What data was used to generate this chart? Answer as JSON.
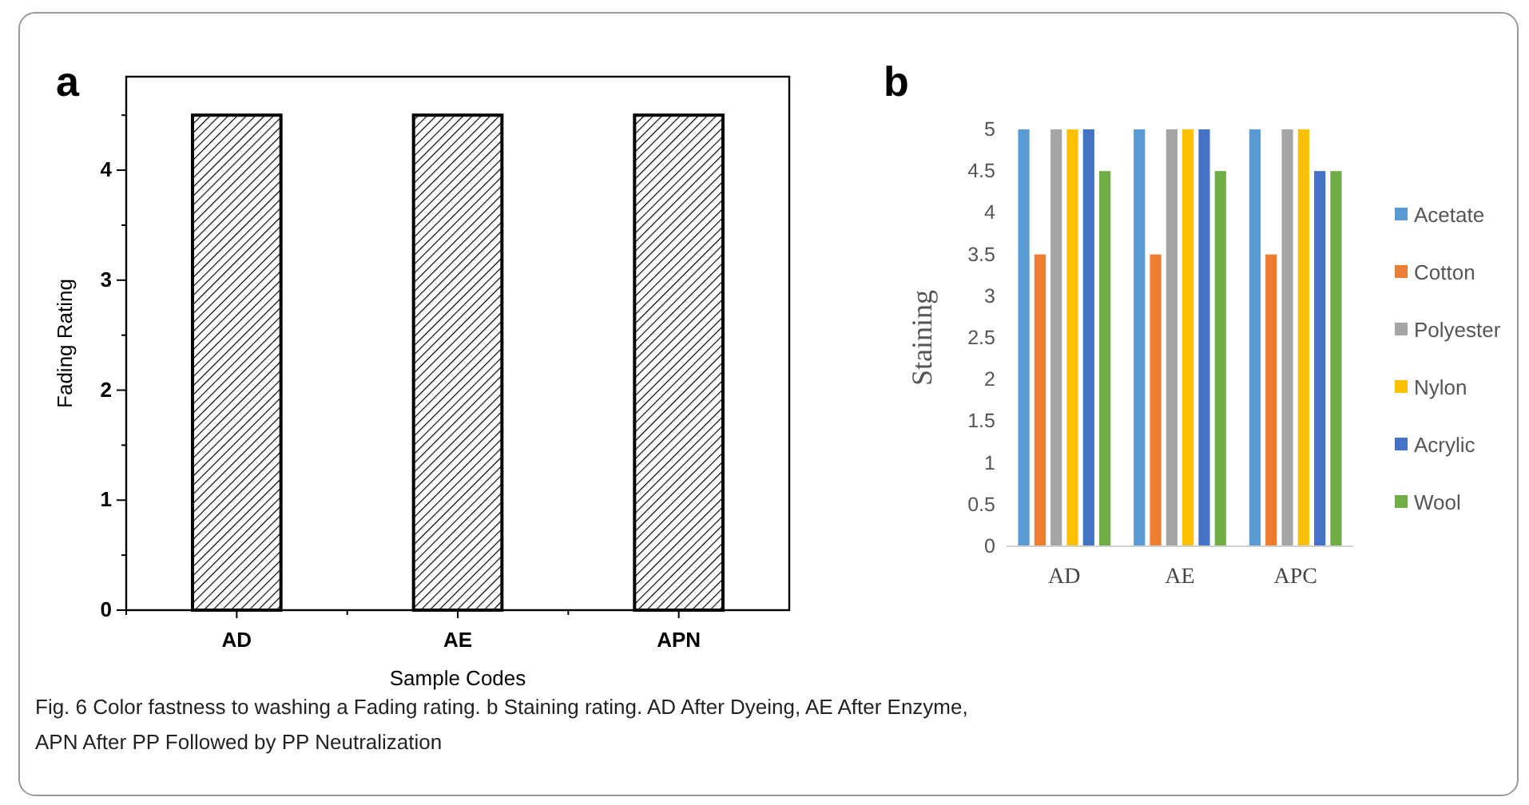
{
  "chart_data": [
    {
      "type": "bar",
      "title": "a",
      "xlabel": "Sample Codes",
      "ylabel": "Fading Rating",
      "categories": [
        "AD",
        "AE",
        "APN"
      ],
      "values": [
        4.5,
        4.5,
        4.5
      ],
      "color": "#000000",
      "ylim": [
        0,
        4.85
      ],
      "yticks": [
        0,
        {
          "value": 0.5,
          "label": null
        },
        1,
        {
          "value": 1.5,
          "label": null
        },
        2,
        {
          "value": 2.5,
          "label": null
        },
        3,
        {
          "value": 3.5,
          "label": null
        },
        4,
        {
          "value": 4.5,
          "label": null
        }
      ],
      "grid": false,
      "annotations": [
        "Fig. 6 Color fastness to washing a Fading rating. b Staining rating. AD After Dyeing, AE After Enzyme, APN After PP Followed by PP Neutralization"
      ]
    },
    {
      "type": "bar",
      "title": "b",
      "ylabel": "Staining",
      "categories": [
        "AD",
        "AE",
        "APC"
      ],
      "ylim": [
        0,
        5
      ],
      "yticks": [
        0,
        0.5,
        1,
        1.5,
        2,
        2.5,
        3,
        3.5,
        4,
        4.5,
        5
      ],
      "grid": false,
      "legend": "right",
      "series": [
        {
          "name": "Acetate",
          "color": "#5b9bd5",
          "values": [
            5,
            5,
            5
          ]
        },
        {
          "name": "Cotton",
          "color": "#ed7d31",
          "values": [
            3.5,
            3.5,
            3.5
          ]
        },
        {
          "name": "Polyester",
          "color": "#a5a5a5",
          "values": [
            5,
            5,
            5
          ]
        },
        {
          "name": "Nylon",
          "color": "#ffc000",
          "values": [
            5,
            5,
            5
          ]
        },
        {
          "name": "Acrylic",
          "color": "#4472c4",
          "values": [
            5,
            5,
            4.5
          ]
        },
        {
          "name": "Wool",
          "color": "#70ad47",
          "values": [
            4.5,
            4.5,
            4.5
          ]
        }
      ]
    }
  ]
}
